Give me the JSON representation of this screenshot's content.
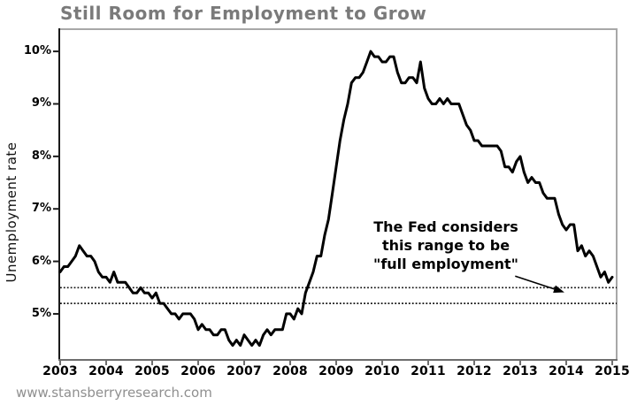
{
  "page": {
    "watermark": "www.stansberryresearch.com"
  },
  "colors": {
    "background": "#ffffff",
    "title": "#7a7a7a",
    "line": "#000000",
    "band": "#111111",
    "axis_dark": "#1a1a1a",
    "axis_bottom": "#6e6e6e",
    "axis_light": "#a8a8a8",
    "tick_label": "#000000",
    "watermark": "#8f8f8f",
    "annotation": "#000000"
  },
  "chart_data": {
    "type": "line",
    "title": "Still Room for Employment to Grow",
    "xlabel": "",
    "ylabel": "Unemployment rate",
    "grid": false,
    "legend_position": "none",
    "xlim": [
      2003,
      2015.115
    ],
    "ylim": [
      4.14,
      10.44
    ],
    "x_ticks": [
      {
        "label": "2003",
        "value": 2003
      },
      {
        "label": "2004",
        "value": 2004
      },
      {
        "label": "2005",
        "value": 2005
      },
      {
        "label": "2006",
        "value": 2006
      },
      {
        "label": "2007",
        "value": 2007
      },
      {
        "label": "2008",
        "value": 2008
      },
      {
        "label": "2009",
        "value": 2009
      },
      {
        "label": "2010",
        "value": 2010
      },
      {
        "label": "2011",
        "value": 2011
      },
      {
        "label": "2012",
        "value": 2012
      },
      {
        "label": "2013",
        "value": 2013
      },
      {
        "label": "2014",
        "value": 2014
      },
      {
        "label": "2015",
        "value": 2015
      }
    ],
    "y_ticks": [
      {
        "label": "10%",
        "value": 10
      },
      {
        "label": "9%",
        "value": 9
      },
      {
        "label": "8%",
        "value": 8
      },
      {
        "label": "7%",
        "value": 7
      },
      {
        "label": "6%",
        "value": 6
      },
      {
        "label": "5%",
        "value": 5
      }
    ],
    "series": [
      {
        "name": "Unemployment rate",
        "color": "#000000",
        "x_start": 2003,
        "x_step_years": 0.0833333,
        "monthly_values": [
          5.8,
          5.9,
          5.9,
          6.0,
          6.1,
          6.3,
          6.2,
          6.1,
          6.1,
          6.0,
          5.8,
          5.7,
          5.7,
          5.6,
          5.8,
          5.6,
          5.6,
          5.6,
          5.5,
          5.4,
          5.4,
          5.5,
          5.4,
          5.4,
          5.3,
          5.4,
          5.2,
          5.2,
          5.1,
          5.0,
          5.0,
          4.9,
          5.0,
          5.0,
          5.0,
          4.9,
          4.7,
          4.8,
          4.7,
          4.7,
          4.6,
          4.6,
          4.7,
          4.7,
          4.5,
          4.4,
          4.5,
          4.4,
          4.6,
          4.5,
          4.4,
          4.5,
          4.4,
          4.6,
          4.7,
          4.6,
          4.7,
          4.7,
          4.7,
          5.0,
          5.0,
          4.9,
          5.1,
          5.0,
          5.4,
          5.6,
          5.8,
          6.1,
          6.1,
          6.5,
          6.8,
          7.3,
          7.8,
          8.3,
          8.7,
          9.0,
          9.4,
          9.5,
          9.5,
          9.6,
          9.8,
          10.0,
          9.9,
          9.9,
          9.8,
          9.8,
          9.9,
          9.9,
          9.6,
          9.4,
          9.4,
          9.5,
          9.5,
          9.4,
          9.8,
          9.3,
          9.1,
          9.0,
          9.0,
          9.1,
          9.0,
          9.1,
          9.0,
          9.0,
          9.0,
          8.8,
          8.6,
          8.5,
          8.3,
          8.3,
          8.2,
          8.2,
          8.2,
          8.2,
          8.2,
          8.1,
          7.8,
          7.8,
          7.7,
          7.9,
          8.0,
          7.7,
          7.5,
          7.6,
          7.5,
          7.5,
          7.3,
          7.2,
          7.2,
          7.2,
          6.9,
          6.7,
          6.6,
          6.7,
          6.7,
          6.2,
          6.3,
          6.1,
          6.2,
          6.1,
          5.9,
          5.7,
          5.8,
          5.6,
          5.7
        ]
      }
    ],
    "band": {
      "name": "full employment range",
      "low": 5.2,
      "high": 5.5,
      "style": "dotted"
    },
    "annotation": {
      "lines": [
        "The Fed considers",
        "this range to be",
        "\"full employment\""
      ],
      "arrow": {
        "from": {
          "x": 2012.89,
          "y": 5.72
        },
        "to": {
          "x": 2013.96,
          "y": 5.41
        }
      }
    }
  }
}
